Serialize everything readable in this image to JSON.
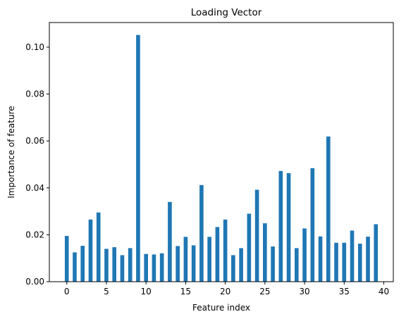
{
  "chart_data": {
    "type": "bar",
    "title": "Loading Vector",
    "xlabel": "Feature index",
    "ylabel": "Importance of feature",
    "x": [
      0,
      1,
      2,
      3,
      4,
      5,
      6,
      7,
      8,
      9,
      10,
      11,
      12,
      13,
      14,
      15,
      16,
      17,
      18,
      19,
      20,
      21,
      22,
      23,
      24,
      25,
      26,
      27,
      28,
      29,
      30,
      31,
      32,
      33,
      34,
      35,
      36,
      37,
      38,
      39
    ],
    "values": [
      0.0195,
      0.0125,
      0.0153,
      0.0265,
      0.0295,
      0.014,
      0.0147,
      0.0113,
      0.0143,
      0.1052,
      0.0118,
      0.0116,
      0.0121,
      0.034,
      0.0152,
      0.0191,
      0.0155,
      0.0412,
      0.0191,
      0.0233,
      0.0265,
      0.0113,
      0.0143,
      0.029,
      0.0392,
      0.0249,
      0.015,
      0.0472,
      0.0463,
      0.0143,
      0.0227,
      0.0484,
      0.0193,
      0.0619,
      0.0166,
      0.0166,
      0.0218,
      0.0162,
      0.0192,
      0.0245
    ],
    "xlim": [
      -2.2,
      41.2
    ],
    "ylim": [
      0,
      0.1105
    ],
    "xticks": [
      0,
      5,
      10,
      15,
      20,
      25,
      30,
      35,
      40
    ],
    "yticks": [
      0.0,
      0.02,
      0.04,
      0.06,
      0.08,
      0.1
    ],
    "ytick_labels": [
      "0.00",
      "0.02",
      "0.04",
      "0.06",
      "0.08",
      "0.10"
    ],
    "bar_color": "#1f77b4",
    "grid": false,
    "legend": "none"
  }
}
